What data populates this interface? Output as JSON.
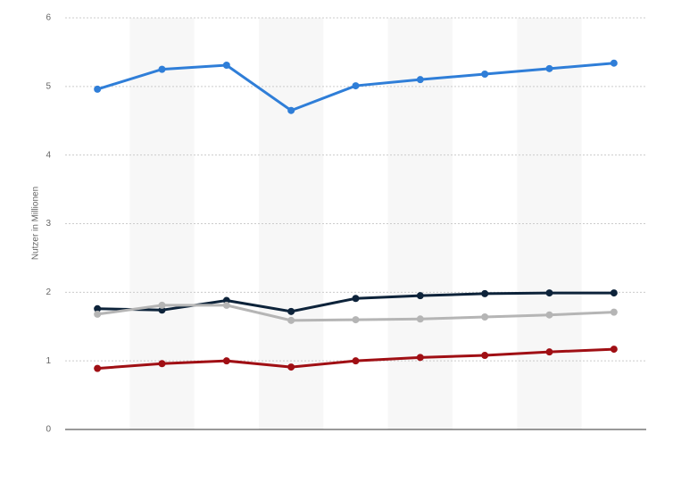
{
  "chart_data": {
    "type": "line",
    "y_label": "Nutzer in Millionen",
    "categories": [
      null,
      null,
      null,
      null,
      null,
      null,
      null,
      null,
      null
    ],
    "series": [
      {
        "color": "#2f7ed8",
        "values": [
          4.96,
          5.25,
          5.31,
          4.65,
          5.01,
          5.1,
          5.18,
          5.26,
          5.34
        ]
      },
      {
        "color": "#0d233a",
        "values": [
          1.76,
          1.74,
          1.88,
          1.72,
          1.91,
          1.95,
          1.98,
          1.99,
          1.99
        ]
      },
      {
        "color": "#b5b5b5",
        "values": [
          1.68,
          1.81,
          1.81,
          1.59,
          1.6,
          1.61,
          1.64,
          1.67,
          1.71
        ]
      },
      {
        "color": "#a00f14",
        "values": [
          0.89,
          0.96,
          1.0,
          0.91,
          1.0,
          1.05,
          1.08,
          1.13,
          1.17
        ]
      }
    ],
    "ylim": [
      0,
      6
    ],
    "yticks": [
      0,
      1,
      2,
      3,
      4,
      5,
      6
    ],
    "grid": true
  }
}
